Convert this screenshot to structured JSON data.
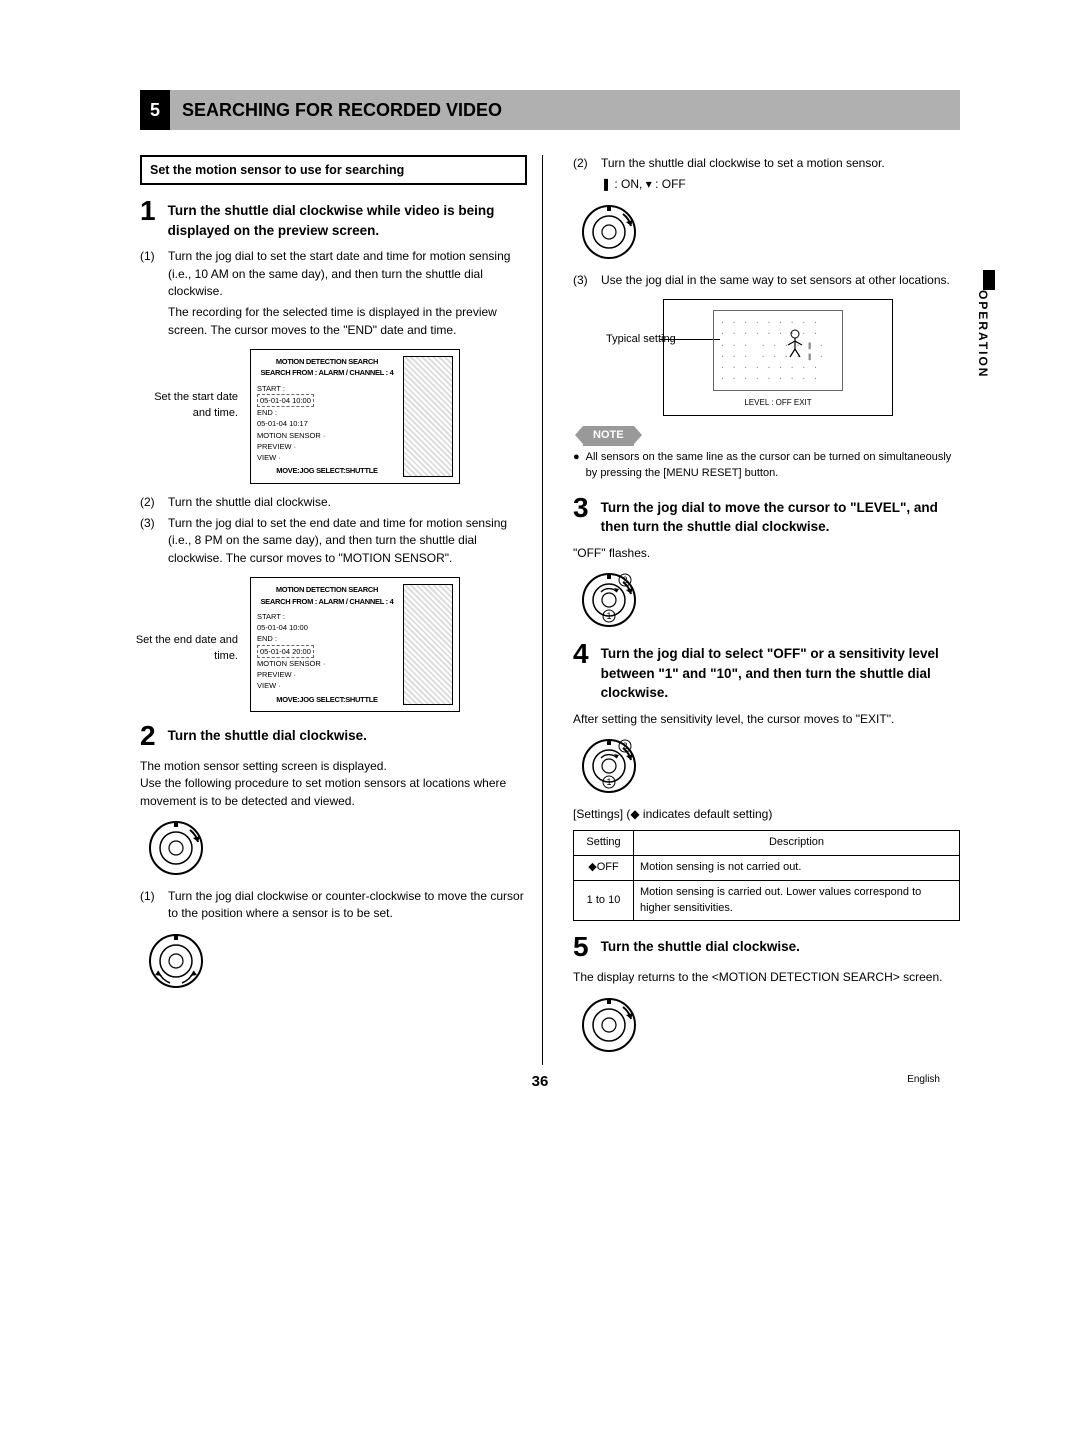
{
  "header": {
    "num": "5",
    "title": "SEARCHING FOR RECORDED VIDEO"
  },
  "section_box": "Set the motion sensor to use for searching",
  "left": {
    "step1": {
      "num": "1",
      "text": "Turn the shuttle dial clockwise while video is being displayed on the preview screen.",
      "sub1_num": "(1)",
      "sub1": "Turn the jog dial to set the start date and time for motion sensing (i.e., 10 AM on the same day), and then turn the shuttle dial clockwise.",
      "sub1b": "The recording for the selected time is displayed in the preview screen. The cursor moves to the \"END\" date and time.",
      "screen1_label": "Set the start date and time.",
      "sub2_num": "(2)",
      "sub2": "Turn the shuttle dial clockwise.",
      "sub3_num": "(3)",
      "sub3": "Turn the jog dial to set the end date and time for motion sensing (i.e., 8 PM on the same day), and then turn the shuttle dial clockwise. The cursor moves to \"MOTION SENSOR\".",
      "screen2_label": "Set the end date and time."
    },
    "step2": {
      "num": "2",
      "text": "Turn the shuttle dial clockwise.",
      "body1": "The motion sensor setting screen is displayed.",
      "body2": "Use the following procedure to set motion sensors at locations where movement is to be detected and viewed.",
      "sub1_num": "(1)",
      "sub1": "Turn the jog dial clockwise or counter-clockwise to move the cursor to the position where a sensor is to be set."
    },
    "screen": {
      "l1": "MOTION DETECTION SEARCH",
      "l2": "SEARCH FROM : ALARM    / CHANNEL : 4",
      "l3": "START :",
      "l4a": "05-01-04  10:00",
      "l5": "END :",
      "l6a": "05-01-04  10:17",
      "l6b": "05-01-04  20:00",
      "l7": "MOTION SENSOR  ·",
      "l8": "PREVIEW    ·",
      "l9": "VIEW    ·",
      "footer": "MOVE:JOG  SELECT:SHUTTLE"
    }
  },
  "right": {
    "sub2_num": "(2)",
    "sub2": "Turn the shuttle dial clockwise to set a motion sensor.",
    "onoff": "❚ : ON,  ▾ : OFF",
    "sub3_num": "(3)",
    "sub3": "Use the jog dial in the same way to set sensors at other locations.",
    "sensor_label": "Typical setting",
    "sensor_footer": "LEVEL : OFF    EXIT",
    "note_label": "NOTE",
    "note_body": "All sensors on the same line as the cursor can be turned on simultaneously by pressing the [MENU RESET] button.",
    "step3": {
      "num": "3",
      "text": "Turn the jog dial to move the cursor to \"LEVEL\", and then turn the shuttle dial clockwise.",
      "body": "\"OFF\" flashes."
    },
    "step4": {
      "num": "4",
      "text": "Turn the jog dial to select \"OFF\" or a sensitivity level between \"1\" and \"10\", and then turn the shuttle dial clockwise.",
      "body": "After setting the sensitivity level, the cursor moves to \"EXIT\"."
    },
    "settings_caption": "[Settings] (◆ indicates default setting)",
    "table": {
      "h1": "Setting",
      "h2": "Description",
      "r1c1": "◆OFF",
      "r1c2": "Motion sensing is not carried out.",
      "r2c1": "1 to 10",
      "r2c2": "Motion sensing is carried out. Lower values correspond to higher sensitivities."
    },
    "step5": {
      "num": "5",
      "text": "Turn the shuttle dial clockwise.",
      "body": "The display returns to the <MOTION DETECTION SEARCH> screen."
    }
  },
  "side_tab": "OPERATION",
  "page_num": "36",
  "lang": "English",
  "dial_svg": {
    "outer": "<circle cx='28' cy='28' r='26' fill='none' stroke='#000' stroke-width='2'/><circle cx='28' cy='28' r='16' fill='none' stroke='#000' stroke-width='1.5'/><circle cx='28' cy='28' r='7' fill='none' stroke='#000' stroke-width='1.2'/><rect x='26' y='2' width='4' height='5' fill='#000'/>",
    "arrow_cw": "<path d='M 42 10 A 22 22 0 0 1 50 22' fill='none' stroke='#000' stroke-width='2'/><polygon points='50,22 45,18 52,16' fill='#000'/>",
    "arrow_both_outer": "<path d='M 10 38 A 22 22 0 0 0 22 50' fill='none' stroke='#000' stroke-width='1.5'/><polygon points='10,38 14,43 7,42' fill='#000'/><path d='M 46 38 A 22 22 0 0 1 34 50' fill='none' stroke='#000' stroke-width='1.5'/><polygon points='46,38 42,43 49,42' fill='#000'/>",
    "arrow_inner": "<path d='M 20 20 A 11 11 0 0 1 36 20' fill='none' stroke='#000' stroke-width='1.3'/><polygon points='36,20 33,16 38,17' fill='#000'/>",
    "label2": "<circle cx='44' cy='8' r='6' fill='none' stroke='#000' stroke-width='1'/><text x='44' y='11' font-size='9' text-anchor='middle'>2</text>",
    "label1": "<circle cx='28' cy='44' r='6' fill='none' stroke='#000' stroke-width='1'/><text x='28' y='47' font-size='9' text-anchor='middle'>1</text>"
  }
}
